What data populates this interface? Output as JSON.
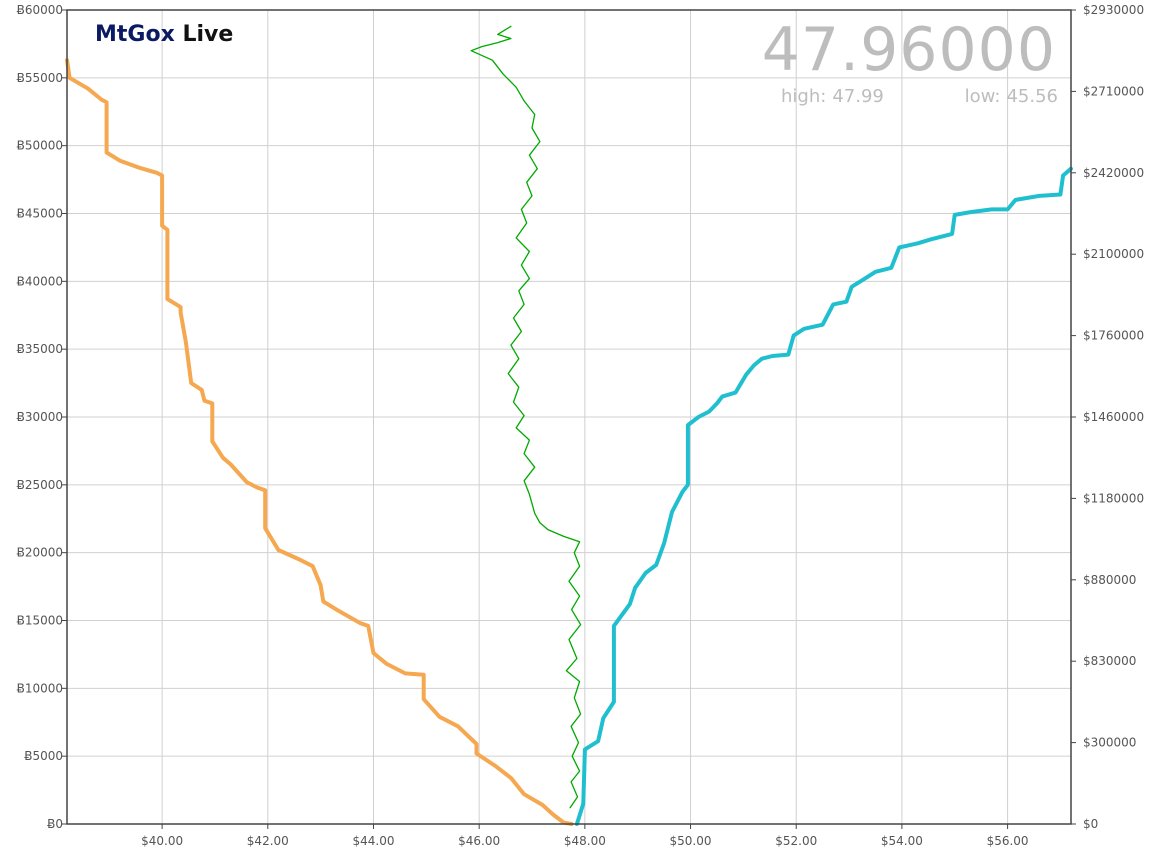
{
  "header": {
    "brand_first": "MtGox",
    "brand_second": "Live",
    "last_price": "47.96000",
    "high_label": "high:",
    "high_value": "47.99",
    "low_label": "low:",
    "low_value": "45.56"
  },
  "colors": {
    "bids": "#f5a850",
    "asks": "#20bfcf",
    "price": "#00aa00",
    "grid": "#d0d0d0",
    "axis": "#444444",
    "brand_blue": "#0b1a63"
  },
  "chart_data": {
    "type": "line",
    "x_range": [
      38.2,
      57.2
    ],
    "x_ticks": [
      "$40.00",
      "$42.00",
      "$44.00",
      "$46.00",
      "$48.00",
      "$50.00",
      "$52.00",
      "$54.00",
      "$56.00"
    ],
    "x_tick_values": [
      40,
      42,
      44,
      46,
      48,
      50,
      52,
      54,
      56
    ],
    "y_left_range": [
      0,
      60000
    ],
    "y_left_ticks": [
      "Ƀ0",
      "Ƀ5000",
      "Ƀ10000",
      "Ƀ15000",
      "Ƀ20000",
      "Ƀ25000",
      "Ƀ30000",
      "Ƀ35000",
      "Ƀ40000",
      "Ƀ45000",
      "Ƀ50000",
      "Ƀ55000",
      "Ƀ60000"
    ],
    "y_right_ticks": [
      "$0",
      "$300000",
      "$830000",
      "$880000",
      "$1180000",
      "$1460000",
      "$1760000",
      "$2100000",
      "$2420000",
      "$2710000",
      "$2930000"
    ],
    "series": [
      {
        "name": "",
        "role": "bids",
        "points": [
          [
            38.2,
            56300
          ],
          [
            38.25,
            55000
          ],
          [
            38.6,
            54200
          ],
          [
            38.85,
            53400
          ],
          [
            38.95,
            53200
          ],
          [
            38.95,
            49500
          ],
          [
            39.2,
            48900
          ],
          [
            39.55,
            48400
          ],
          [
            39.9,
            48000
          ],
          [
            40.0,
            47800
          ],
          [
            40.0,
            44100
          ],
          [
            40.1,
            43800
          ],
          [
            40.1,
            38700
          ],
          [
            40.35,
            38100
          ],
          [
            40.35,
            37700
          ],
          [
            40.45,
            35500
          ],
          [
            40.55,
            32500
          ],
          [
            40.75,
            32000
          ],
          [
            40.8,
            31200
          ],
          [
            40.95,
            31000
          ],
          [
            40.95,
            28200
          ],
          [
            41.15,
            27000
          ],
          [
            41.3,
            26500
          ],
          [
            41.6,
            25200
          ],
          [
            41.8,
            24800
          ],
          [
            41.95,
            24600
          ],
          [
            41.95,
            21800
          ],
          [
            42.2,
            20200
          ],
          [
            42.6,
            19500
          ],
          [
            42.85,
            19000
          ],
          [
            43.0,
            17600
          ],
          [
            43.05,
            16400
          ],
          [
            43.3,
            15800
          ],
          [
            43.75,
            14800
          ],
          [
            43.9,
            14600
          ],
          [
            44.0,
            12600
          ],
          [
            44.25,
            11800
          ],
          [
            44.6,
            11100
          ],
          [
            44.95,
            11000
          ],
          [
            44.95,
            9200
          ],
          [
            45.25,
            7900
          ],
          [
            45.6,
            7200
          ],
          [
            45.95,
            5900
          ],
          [
            45.95,
            5200
          ],
          [
            46.3,
            4300
          ],
          [
            46.6,
            3400
          ],
          [
            46.85,
            2200
          ],
          [
            47.2,
            1400
          ],
          [
            47.4,
            700
          ],
          [
            47.6,
            100
          ],
          [
            47.75,
            0
          ]
        ]
      },
      {
        "name": "",
        "role": "asks",
        "points": [
          [
            47.85,
            0
          ],
          [
            47.97,
            1500
          ],
          [
            48.0,
            5500
          ],
          [
            48.25,
            6100
          ],
          [
            48.35,
            7800
          ],
          [
            48.55,
            9000
          ],
          [
            48.55,
            14600
          ],
          [
            48.85,
            16200
          ],
          [
            48.95,
            17400
          ],
          [
            49.15,
            18500
          ],
          [
            49.35,
            19100
          ],
          [
            49.5,
            20700
          ],
          [
            49.65,
            23000
          ],
          [
            49.85,
            24500
          ],
          [
            49.95,
            25000
          ],
          [
            49.95,
            29400
          ],
          [
            50.15,
            30000
          ],
          [
            50.35,
            30400
          ],
          [
            50.5,
            31000
          ],
          [
            50.6,
            31500
          ],
          [
            50.85,
            31800
          ],
          [
            51.05,
            33100
          ],
          [
            51.2,
            33800
          ],
          [
            51.35,
            34300
          ],
          [
            51.55,
            34500
          ],
          [
            51.85,
            34600
          ],
          [
            51.95,
            36000
          ],
          [
            52.15,
            36500
          ],
          [
            52.5,
            36800
          ],
          [
            52.7,
            38300
          ],
          [
            52.95,
            38500
          ],
          [
            53.05,
            39600
          ],
          [
            53.3,
            40200
          ],
          [
            53.5,
            40700
          ],
          [
            53.8,
            41000
          ],
          [
            53.95,
            42500
          ],
          [
            54.3,
            42800
          ],
          [
            54.55,
            43100
          ],
          [
            54.95,
            43500
          ],
          [
            55.0,
            44900
          ],
          [
            55.3,
            45100
          ],
          [
            55.7,
            45300
          ],
          [
            56.0,
            45300
          ],
          [
            56.15,
            46000
          ],
          [
            56.6,
            46300
          ],
          [
            57.0,
            46400
          ],
          [
            57.05,
            47800
          ],
          [
            57.2,
            48300
          ]
        ]
      },
      {
        "name": "",
        "role": "price",
        "points": [
          [
            47.72,
            1200
          ],
          [
            47.86,
            2000
          ],
          [
            47.74,
            3100
          ],
          [
            47.9,
            3900
          ],
          [
            47.76,
            5000
          ],
          [
            47.88,
            6000
          ],
          [
            47.74,
            7200
          ],
          [
            47.92,
            8100
          ],
          [
            47.8,
            9300
          ],
          [
            47.9,
            10500
          ],
          [
            47.65,
            11300
          ],
          [
            47.85,
            12200
          ],
          [
            47.7,
            13600
          ],
          [
            47.92,
            14700
          ],
          [
            47.75,
            15800
          ],
          [
            47.9,
            16800
          ],
          [
            47.7,
            17900
          ],
          [
            47.9,
            19000
          ],
          [
            47.8,
            20000
          ],
          [
            47.9,
            20800
          ],
          [
            47.6,
            21200
          ],
          [
            47.3,
            21700
          ],
          [
            47.15,
            22200
          ],
          [
            47.05,
            22900
          ],
          [
            46.95,
            24300
          ],
          [
            46.85,
            25300
          ],
          [
            47.05,
            26300
          ],
          [
            46.85,
            27300
          ],
          [
            46.95,
            28300
          ],
          [
            46.7,
            29200
          ],
          [
            46.85,
            30100
          ],
          [
            46.65,
            31100
          ],
          [
            46.75,
            32200
          ],
          [
            46.55,
            33200
          ],
          [
            46.75,
            34300
          ],
          [
            46.6,
            35300
          ],
          [
            46.8,
            36300
          ],
          [
            46.65,
            37300
          ],
          [
            46.85,
            38300
          ],
          [
            46.75,
            39300
          ],
          [
            46.95,
            40200
          ],
          [
            46.8,
            41200
          ],
          [
            46.95,
            42200
          ],
          [
            46.7,
            43200
          ],
          [
            46.9,
            44300
          ],
          [
            46.8,
            45300
          ],
          [
            47.0,
            46300
          ],
          [
            46.9,
            47300
          ],
          [
            47.1,
            48300
          ],
          [
            46.95,
            49300
          ],
          [
            47.15,
            50300
          ],
          [
            47.0,
            51300
          ],
          [
            47.05,
            52300
          ],
          [
            46.85,
            53300
          ],
          [
            46.7,
            54300
          ],
          [
            46.45,
            55300
          ],
          [
            46.25,
            56300
          ],
          [
            45.85,
            57000
          ],
          [
            46.05,
            57300
          ],
          [
            46.35,
            57600
          ],
          [
            46.6,
            57900
          ],
          [
            46.35,
            58200
          ],
          [
            46.6,
            58800
          ]
        ]
      }
    ],
    "grid": true
  }
}
